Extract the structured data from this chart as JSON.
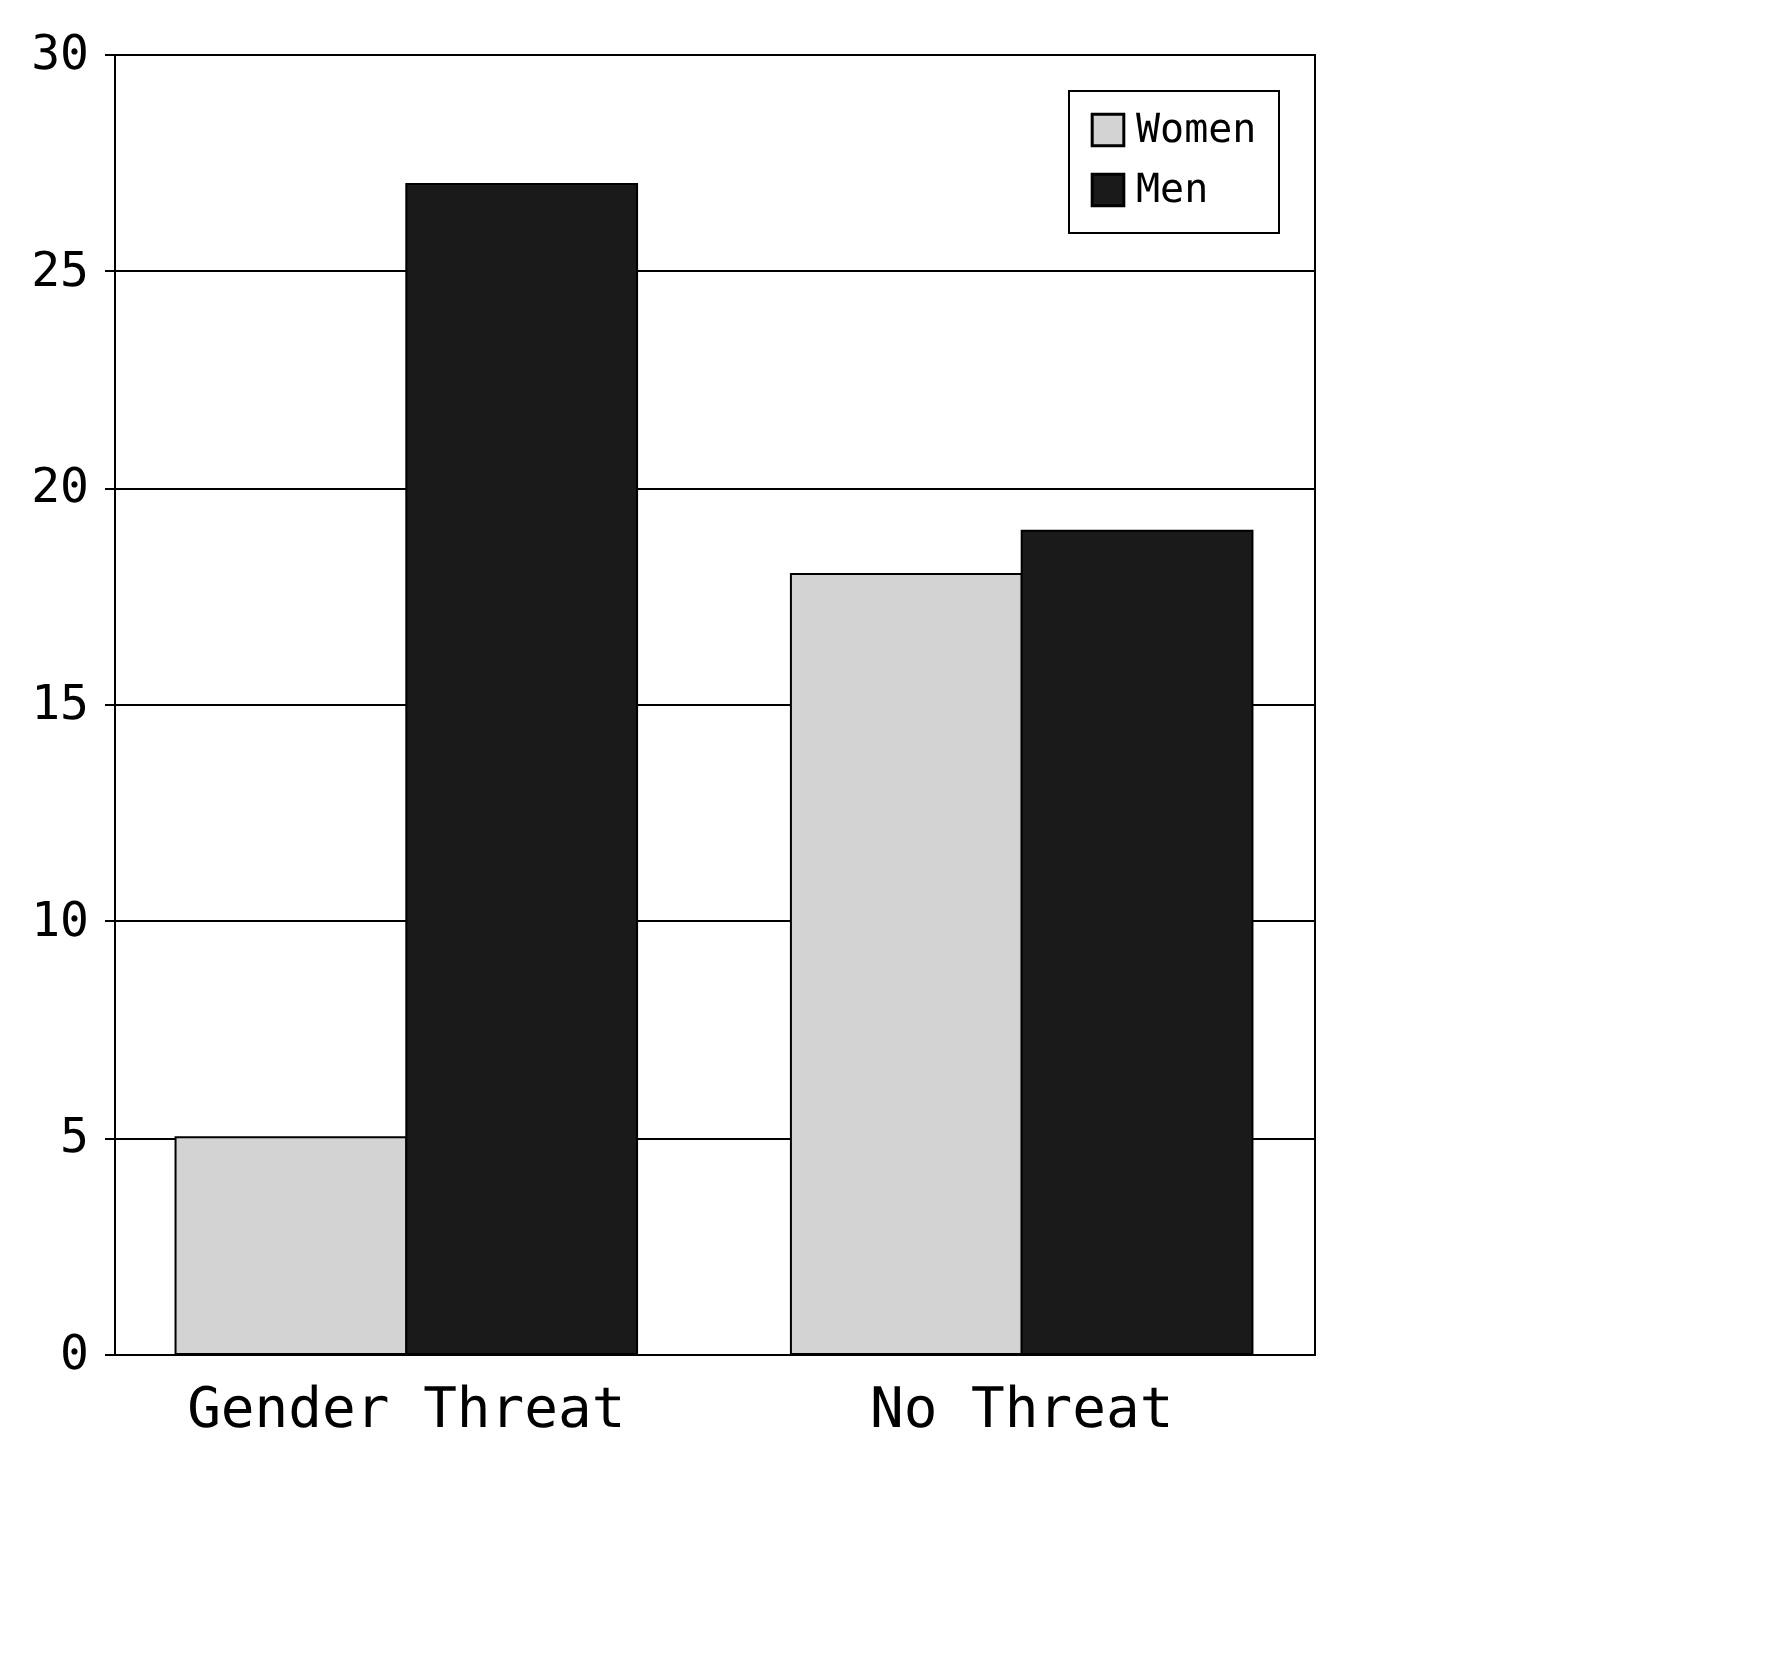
{
  "chart_data": {
    "type": "bar",
    "categories": [
      "Gender Threat",
      "No Threat"
    ],
    "series": [
      {
        "name": "Women",
        "color": "#d3d3d3",
        "values": [
          5,
          18
        ]
      },
      {
        "name": "Men",
        "color": "#1a1a1a",
        "values": [
          27,
          19
        ]
      }
    ],
    "ylim": [
      0,
      30
    ],
    "yticks": [
      0,
      5,
      10,
      15,
      20,
      25,
      30
    ],
    "grid": "y",
    "legend": "top right"
  }
}
